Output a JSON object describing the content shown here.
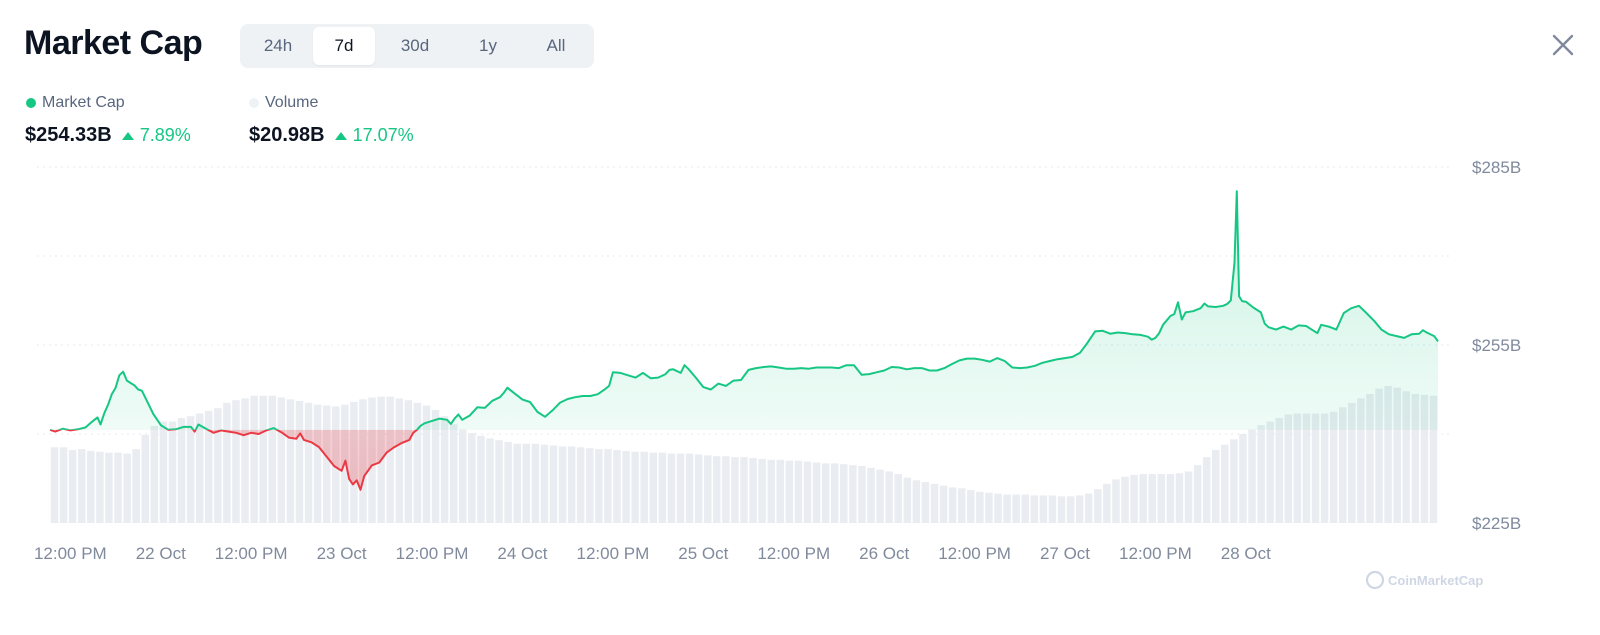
{
  "header": {
    "title": "Market Cap",
    "ranges": [
      {
        "label": "24h",
        "active": false
      },
      {
        "label": "7d",
        "active": true
      },
      {
        "label": "30d",
        "active": false
      },
      {
        "label": "1y",
        "active": false
      },
      {
        "label": "All",
        "active": false
      }
    ],
    "close_icon": "close-icon"
  },
  "legend": {
    "market_cap": {
      "label": "Market Cap",
      "color": "#16c784",
      "value": "$254.33B",
      "change": "7.89%"
    },
    "volume": {
      "label": "Volume",
      "color": "#eff2f5",
      "value": "$20.98B",
      "change": "17.07%"
    }
  },
  "colors": {
    "up": "#16c784",
    "down": "#ea3943",
    "volume": "#e9ecf1",
    "grid": "#e6e8ec"
  },
  "watermark": "CoinMarketCap",
  "chart_data": {
    "type": "area",
    "baseline": 240.7,
    "ylim": [
      225,
      285
    ],
    "y_ticks": [
      "$285B",
      "$255B",
      "$225B"
    ],
    "y_tick_values": [
      285,
      255,
      225
    ],
    "x_tick_labels": [
      "12:00 PM",
      "22 Oct",
      "12:00 PM",
      "23 Oct",
      "12:00 PM",
      "24 Oct",
      "12:00 PM",
      "25 Oct",
      "12:00 PM",
      "26 Oct",
      "12:00 PM",
      "27 Oct",
      "12:00 PM",
      "28 Oct"
    ],
    "x_tick_hours": [
      12,
      24,
      36,
      48,
      60,
      72,
      84,
      96,
      108,
      120,
      132,
      144,
      156,
      168
    ],
    "xlim_hours": [
      9.3,
      193.5
    ],
    "series": [
      {
        "name": "Market Cap",
        "points": [
          [
            9.3,
            240.7
          ],
          [
            10,
            240.4
          ],
          [
            11,
            240.9
          ],
          [
            12,
            240.6
          ],
          [
            13,
            240.8
          ],
          [
            14,
            241.1
          ],
          [
            15,
            242.2
          ],
          [
            15.6,
            242.8
          ],
          [
            16,
            241.6
          ],
          [
            16.5,
            243.5
          ],
          [
            17,
            244.9
          ],
          [
            17.5,
            246.7
          ],
          [
            18,
            247.8
          ],
          [
            18.5,
            249.9
          ],
          [
            19,
            250.5
          ],
          [
            19.5,
            249.0
          ],
          [
            20,
            248.6
          ],
          [
            20.5,
            248.2
          ],
          [
            21,
            247.5
          ],
          [
            21.5,
            247.3
          ],
          [
            22,
            246.0
          ],
          [
            23,
            243.4
          ],
          [
            24,
            241.5
          ],
          [
            25,
            240.7
          ],
          [
            26,
            240.8
          ],
          [
            27,
            241.2
          ],
          [
            28,
            241.2
          ],
          [
            28.5,
            240.4
          ],
          [
            29,
            241.6
          ],
          [
            30,
            240.9
          ],
          [
            31,
            240.2
          ],
          [
            32,
            240.6
          ],
          [
            33,
            240.4
          ],
          [
            34,
            240.2
          ],
          [
            35,
            239.8
          ],
          [
            36,
            240.2
          ],
          [
            37,
            240.0
          ],
          [
            38,
            240.6
          ],
          [
            39,
            241.0
          ],
          [
            40,
            240.3
          ],
          [
            41,
            239.4
          ],
          [
            42,
            239.2
          ],
          [
            42.5,
            240.1
          ],
          [
            43,
            239.0
          ],
          [
            44,
            238.6
          ],
          [
            45,
            237.8
          ],
          [
            46,
            236.2
          ],
          [
            47,
            234.6
          ],
          [
            48,
            233.8
          ],
          [
            48.5,
            235.5
          ],
          [
            49,
            232.4
          ],
          [
            49.5,
            231.5
          ],
          [
            50,
            232.2
          ],
          [
            50.5,
            230.6
          ],
          [
            51,
            232.9
          ],
          [
            52,
            234.7
          ],
          [
            53,
            235.2
          ],
          [
            54,
            236.9
          ],
          [
            55,
            237.8
          ],
          [
            56,
            238.5
          ],
          [
            57,
            239.0
          ],
          [
            57.5,
            240.2
          ],
          [
            58,
            240.7
          ],
          [
            58.5,
            241.4
          ],
          [
            59,
            241.8
          ],
          [
            60,
            242.2
          ],
          [
            61,
            242.6
          ],
          [
            62,
            242.4
          ],
          [
            62.5,
            241.7
          ],
          [
            63,
            242.6
          ],
          [
            63.5,
            243.3
          ],
          [
            64,
            242.4
          ],
          [
            65,
            243.1
          ],
          [
            66,
            244.5
          ],
          [
            67,
            244.4
          ],
          [
            68,
            245.6
          ],
          [
            69,
            246.2
          ],
          [
            69.5,
            246.9
          ],
          [
            70,
            247.8
          ],
          [
            71,
            246.8
          ],
          [
            72,
            245.8
          ],
          [
            73,
            245.4
          ],
          [
            74,
            243.7
          ],
          [
            75,
            242.9
          ],
          [
            76,
            244.0
          ],
          [
            77,
            245.3
          ],
          [
            78,
            245.9
          ],
          [
            79,
            246.2
          ],
          [
            80,
            246.4
          ],
          [
            81,
            246.4
          ],
          [
            82,
            246.7
          ],
          [
            83,
            247.6
          ],
          [
            83.5,
            248.1
          ],
          [
            84,
            250.4
          ],
          [
            85,
            250.3
          ],
          [
            86,
            249.9
          ],
          [
            87,
            249.5
          ],
          [
            88,
            250.3
          ],
          [
            89,
            249.4
          ],
          [
            90,
            249.5
          ],
          [
            91,
            250.1
          ],
          [
            91.5,
            250.8
          ],
          [
            92,
            250.9
          ],
          [
            93,
            250.3
          ],
          [
            93.5,
            251.6
          ],
          [
            94,
            251.0
          ],
          [
            95,
            249.5
          ],
          [
            96,
            247.9
          ],
          [
            97,
            247.5
          ],
          [
            98,
            248.5
          ],
          [
            99,
            248.1
          ],
          [
            100,
            249.0
          ],
          [
            101,
            249.1
          ],
          [
            102,
            250.8
          ],
          [
            103,
            251.1
          ],
          [
            104,
            251.3
          ],
          [
            105,
            251.4
          ],
          [
            106,
            251.2
          ],
          [
            107,
            251.0
          ],
          [
            108,
            251.0
          ],
          [
            109,
            251.1
          ],
          [
            110,
            251.0
          ],
          [
            111,
            251.2
          ],
          [
            112,
            251.2
          ],
          [
            113,
            251.2
          ],
          [
            114,
            251.1
          ],
          [
            115,
            251.6
          ],
          [
            116,
            251.6
          ],
          [
            117,
            250.0
          ],
          [
            118,
            250.1
          ],
          [
            119,
            250.4
          ],
          [
            120,
            250.7
          ],
          [
            121,
            251.3
          ],
          [
            122,
            251.2
          ],
          [
            123,
            250.9
          ],
          [
            124,
            251.1
          ],
          [
            125,
            251.1
          ],
          [
            126,
            250.7
          ],
          [
            127,
            250.7
          ],
          [
            128,
            251.1
          ],
          [
            129,
            251.8
          ],
          [
            130,
            252.4
          ],
          [
            131,
            252.7
          ],
          [
            132,
            252.7
          ],
          [
            133,
            252.5
          ],
          [
            134,
            252.2
          ],
          [
            135,
            252.8
          ],
          [
            136,
            252.3
          ],
          [
            137,
            251.2
          ],
          [
            138,
            251.1
          ],
          [
            139,
            251.2
          ],
          [
            140,
            251.5
          ],
          [
            141,
            252.0
          ],
          [
            142,
            252.3
          ],
          [
            143,
            252.6
          ],
          [
            144,
            252.8
          ],
          [
            145,
            253.0
          ],
          [
            146,
            253.7
          ],
          [
            147,
            255.4
          ],
          [
            148,
            257.3
          ],
          [
            149,
            257.4
          ],
          [
            150,
            256.9
          ],
          [
            151,
            257.1
          ],
          [
            152,
            257.0
          ],
          [
            153,
            256.8
          ],
          [
            154,
            256.7
          ],
          [
            155,
            256.4
          ],
          [
            155.5,
            255.9
          ],
          [
            156,
            256.2
          ],
          [
            156.5,
            257.0
          ],
          [
            157,
            258.4
          ],
          [
            158,
            259.9
          ],
          [
            158.5,
            260.2
          ],
          [
            159,
            262.2
          ],
          [
            159.5,
            259.3
          ],
          [
            160,
            260.5
          ],
          [
            161,
            260.7
          ],
          [
            162,
            261.2
          ],
          [
            162.5,
            262.0
          ],
          [
            163,
            261.5
          ],
          [
            164,
            261.4
          ],
          [
            165,
            261.6
          ],
          [
            165.5,
            261.9
          ],
          [
            166,
            262.5
          ],
          [
            166.5,
            268.9
          ],
          [
            166.8,
            280.9
          ],
          [
            167.1,
            263.2
          ],
          [
            167.5,
            262.4
          ],
          [
            168,
            262.3
          ],
          [
            169,
            261.3
          ],
          [
            170,
            260.5
          ],
          [
            170.5,
            258.6
          ],
          [
            171,
            258.0
          ],
          [
            172,
            257.6
          ],
          [
            173,
            258.1
          ],
          [
            174,
            257.6
          ],
          [
            175,
            258.3
          ],
          [
            176,
            258.2
          ],
          [
            177,
            257.4
          ],
          [
            177.5,
            257.0
          ],
          [
            178,
            258.4
          ],
          [
            179,
            258.1
          ],
          [
            180,
            257.6
          ],
          [
            181,
            260.4
          ],
          [
            182,
            261.2
          ],
          [
            183,
            261.6
          ],
          [
            184,
            260.4
          ],
          [
            185,
            259.1
          ],
          [
            186,
            257.6
          ],
          [
            187,
            256.8
          ],
          [
            188,
            256.5
          ],
          [
            189,
            256.2
          ],
          [
            190,
            256.8
          ],
          [
            191,
            256.9
          ],
          [
            191.5,
            257.5
          ],
          [
            192,
            257.1
          ],
          [
            193,
            256.5
          ],
          [
            193.5,
            255.6
          ]
        ]
      },
      {
        "name": "Volume",
        "values": [
          8.5,
          8.5,
          8.2,
          8.3,
          8.1,
          8.0,
          7.9,
          7.9,
          7.8,
          8.3,
          9.9,
          10.9,
          11.4,
          11.4,
          11.8,
          12.0,
          12.3,
          12.6,
          12.9,
          13.5,
          13.8,
          14.0,
          14.3,
          14.3,
          14.3,
          14.1,
          13.9,
          13.7,
          13.5,
          13.3,
          13.2,
          13.1,
          13.3,
          13.6,
          13.9,
          14.1,
          14.2,
          14.2,
          14.0,
          13.8,
          13.5,
          13.2,
          12.7,
          12.0,
          11.1,
          10.5,
          10.1,
          9.8,
          9.5,
          9.3,
          9.1,
          8.9,
          8.9,
          8.9,
          8.8,
          8.7,
          8.6,
          8.6,
          8.5,
          8.4,
          8.3,
          8.3,
          8.2,
          8.1,
          8.0,
          8.0,
          7.9,
          7.9,
          7.8,
          7.8,
          7.8,
          7.7,
          7.6,
          7.5,
          7.5,
          7.4,
          7.4,
          7.3,
          7.2,
          7.1,
          7.1,
          7.0,
          7.0,
          6.9,
          6.8,
          6.7,
          6.7,
          6.6,
          6.5,
          6.4,
          6.2,
          6.0,
          5.8,
          5.5,
          5.1,
          4.8,
          4.6,
          4.4,
          4.2,
          4.0,
          3.9,
          3.7,
          3.5,
          3.4,
          3.3,
          3.2,
          3.2,
          3.2,
          3.1,
          3.1,
          3.1,
          3.0,
          3.0,
          3.1,
          3.3,
          3.8,
          4.4,
          4.9,
          5.2,
          5.4,
          5.5,
          5.5,
          5.5,
          5.5,
          5.6,
          5.8,
          6.5,
          7.4,
          8.2,
          8.8,
          9.4,
          10.0,
          10.5,
          11.0,
          11.4,
          11.8,
          12.2,
          12.3,
          12.3,
          12.3,
          12.3,
          12.5,
          13.0,
          13.5,
          14.0,
          14.5,
          15.1,
          15.4,
          15.2,
          14.8,
          14.5,
          14.4,
          14.3
        ]
      }
    ]
  }
}
